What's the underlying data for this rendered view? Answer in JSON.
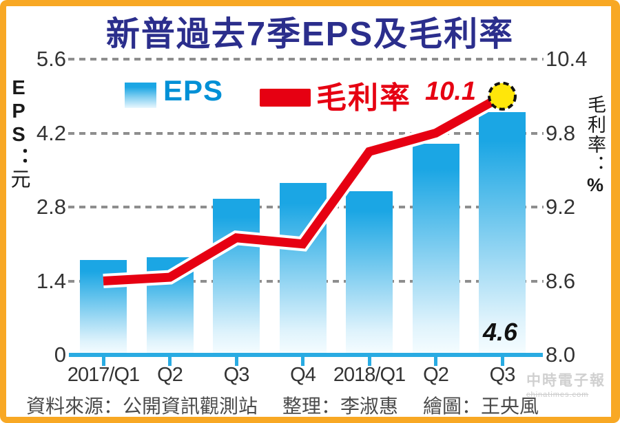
{
  "title": {
    "text": "新普過去7季EPS及毛利率"
  },
  "legend": {
    "eps_label": "EPS",
    "margin_label": "毛利率"
  },
  "left_axis": {
    "title_text": "EPS：",
    "title_unit": "元",
    "tick_labels": [
      "5.6",
      "4.2",
      "2.8",
      "1.4",
      "0"
    ]
  },
  "right_axis": {
    "title_text": "毛利率：",
    "title_pct": "%",
    "tick_labels": [
      "10.4",
      "9.8",
      "9.2",
      "8.6",
      "8.0"
    ]
  },
  "annotations": {
    "line_peak": "10.1",
    "bar_last": "4.6"
  },
  "watermark": {
    "line1": "中時電子報",
    "line2": "chinatimes.com"
  },
  "footer": {
    "source": "資料來源：公開資訊觀測站",
    "editor": "整理：李淑惠",
    "illustrator": "繪圖：王央風"
  },
  "theme": {
    "frame_orange": "#F8A824",
    "title_navy": "#2B2E8C",
    "bar_top": "#1BA6E4",
    "line_red": "#E60012",
    "marker_yellow": "#FFE60A",
    "axis_blue": "#29ABE2",
    "grid_gray": "#8E8E8E",
    "text_dark": "#333333",
    "legend_blue": "#0090D6",
    "watermark_gray": "#CCCCCC",
    "footer_gray": "#4A4A4A"
  },
  "chart_data": {
    "type": "bar+line combo",
    "title": "新普過去7季EPS及毛利率",
    "categories": [
      "2017/Q1",
      "Q2",
      "Q3",
      "Q4",
      "2018/Q1",
      "Q2",
      "Q3"
    ],
    "series": [
      {
        "name": "EPS",
        "type": "bar",
        "axis": "left",
        "values": [
          1.8,
          1.85,
          2.95,
          3.25,
          3.1,
          4.0,
          4.6
        ]
      },
      {
        "name": "毛利率",
        "type": "line",
        "axis": "right",
        "values": [
          8.6,
          8.63,
          8.95,
          8.9,
          9.65,
          9.8,
          10.1
        ]
      }
    ],
    "left_ylabel": "EPS：元",
    "right_ylabel": "毛利率：%",
    "left_ylim": [
      0,
      5.6
    ],
    "right_ylim": [
      8.0,
      10.4
    ],
    "left_ticks": [
      0,
      1.4,
      2.8,
      4.2,
      5.6
    ],
    "right_ticks": [
      8.0,
      8.6,
      9.2,
      9.8,
      10.4
    ],
    "grid": "horizontal dashed",
    "legend_position": "top inside",
    "annotations": [
      {
        "text": "10.1",
        "series": "毛利率",
        "index": 6
      },
      {
        "text": "4.6",
        "series": "EPS",
        "index": 6
      }
    ]
  }
}
